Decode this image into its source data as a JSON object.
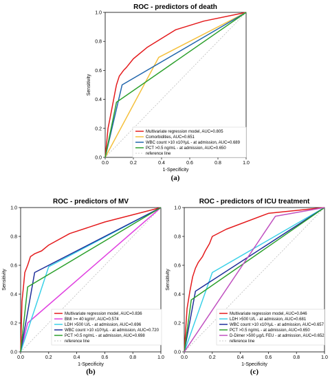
{
  "chart_data": [
    {
      "type": "line",
      "title": "ROC - predictors of death",
      "xlabel": "1-Specificity",
      "ylabel": "Sensitivity",
      "xlim": [
        0,
        1
      ],
      "ylim": [
        0,
        1
      ],
      "xticks": [
        "0.0",
        "0.2",
        "0.4",
        "0.6",
        "0.8",
        "1.0"
      ],
      "yticks": [
        "0.0",
        "0.2",
        "0.4",
        "0.6",
        "0.8",
        "1.0"
      ],
      "panel_label": "(a)",
      "legend_position": "bottom-right",
      "series": [
        {
          "name": "Multivariate regression model, AUC=0.805",
          "color": "#e41a1c",
          "x": [
            0,
            0.01,
            0.02,
            0.03,
            0.05,
            0.07,
            0.08,
            0.1,
            0.13,
            0.15,
            0.2,
            0.3,
            0.5,
            0.7,
            1.0
          ],
          "y": [
            0,
            0.1,
            0.2,
            0.25,
            0.35,
            0.45,
            0.5,
            0.56,
            0.6,
            0.62,
            0.68,
            0.76,
            0.88,
            0.94,
            1.0
          ]
        },
        {
          "name": "Comorbidities, AUC=0.651",
          "color": "#f5c03c",
          "x": [
            0,
            0.38,
            1.0
          ],
          "y": [
            0,
            0.69,
            1.0
          ]
        },
        {
          "name": "WBC count >10 x10³/μL - at admission, AUC=0.689",
          "color": "#2166ac",
          "x": [
            0,
            0.12,
            1.0
          ],
          "y": [
            0,
            0.5,
            1.0
          ]
        },
        {
          "name": "PCT >0.5 ng/mL - at admission, AUC=0.650",
          "color": "#2ca02c",
          "x": [
            0,
            0.08,
            1.0
          ],
          "y": [
            0,
            0.38,
            1.0
          ]
        },
        {
          "name": "reference line",
          "color": "#bbbbbb",
          "dashed": true,
          "x": [
            0,
            1
          ],
          "y": [
            0,
            1
          ]
        }
      ]
    },
    {
      "type": "line",
      "title": "ROC - predictors of MV",
      "xlabel": "1-Specificity",
      "ylabel": "Sensitivity",
      "xlim": [
        0,
        1
      ],
      "ylim": [
        0,
        1
      ],
      "xticks": [
        "0.0",
        "0.2",
        "0.4",
        "0.6",
        "0.8",
        "1.0"
      ],
      "yticks": [
        "0.0",
        "0.2",
        "0.4",
        "0.6",
        "0.8",
        "1.0"
      ],
      "panel_label": "(b)",
      "legend_position": "bottom-right",
      "series": [
        {
          "name": "Multivariate regression model, AUC=0.836",
          "color": "#e41a1c",
          "x": [
            0,
            0.01,
            0.02,
            0.03,
            0.05,
            0.07,
            0.1,
            0.15,
            0.2,
            0.35,
            0.6,
            1.0
          ],
          "y": [
            0,
            0.35,
            0.45,
            0.55,
            0.6,
            0.66,
            0.68,
            0.7,
            0.74,
            0.82,
            0.9,
            1.0
          ]
        },
        {
          "name": "BMI >= 40 kg/m², AUC=0.574",
          "color": "#e040e0",
          "x": [
            0,
            0.05,
            1.0
          ],
          "y": [
            0,
            0.2,
            1.0
          ]
        },
        {
          "name": "LDH >500 U/L - at admission, AUC=0.696",
          "color": "#3ad1e8",
          "x": [
            0,
            0.2,
            1.0
          ],
          "y": [
            0,
            0.59,
            1.0
          ]
        },
        {
          "name": "WBC count >10 x10³/μL - at admission, AUC=0.720",
          "color": "#1f2f9a",
          "x": [
            0,
            0.1,
            1.0
          ],
          "y": [
            0,
            0.55,
            1.0
          ]
        },
        {
          "name": "PCT >0.5 ng/mL - at admission, AUC=0.698",
          "color": "#2ca02c",
          "x": [
            0,
            0.05,
            1.0
          ],
          "y": [
            0,
            0.45,
            1.0
          ]
        },
        {
          "name": "reference line",
          "color": "#bbbbbb",
          "dashed": true,
          "x": [
            0,
            1
          ],
          "y": [
            0,
            1
          ]
        }
      ]
    },
    {
      "type": "line",
      "title": "ROC - predictors of ICU treatment",
      "xlabel": "1-Specificity",
      "ylabel": "Sensitivity",
      "xlim": [
        0,
        1
      ],
      "ylim": [
        0,
        1
      ],
      "xticks": [
        "0.0",
        "0.2",
        "0.4",
        "0.6",
        "0.8",
        "1.0"
      ],
      "yticks": [
        "0.0",
        "0.2",
        "0.4",
        "0.6",
        "0.8",
        "1.0"
      ],
      "panel_label": "(c)",
      "legend_position": "bottom-right",
      "series": [
        {
          "name": "Multivariate regression model, AUC=0.846",
          "color": "#e41a1c",
          "x": [
            0,
            0.01,
            0.02,
            0.04,
            0.06,
            0.08,
            0.1,
            0.13,
            0.15,
            0.18,
            0.2,
            0.3,
            0.6,
            1.0
          ],
          "y": [
            0,
            0.15,
            0.3,
            0.42,
            0.52,
            0.58,
            0.62,
            0.66,
            0.7,
            0.75,
            0.8,
            0.85,
            0.96,
            1.0
          ]
        },
        {
          "name": "LDH >500 U/L - at admission, AUC=0.681",
          "color": "#3ad1e8",
          "x": [
            0,
            0.2,
            1.0
          ],
          "y": [
            0,
            0.55,
            1.0
          ]
        },
        {
          "name": "WBC count >10 x10³/μL - at admission, AUC=0.657",
          "color": "#1f2f9a",
          "x": [
            0,
            0.08,
            1.0
          ],
          "y": [
            0,
            0.42,
            1.0
          ]
        },
        {
          "name": "PCT >0.5 ng/mL - at admission, AUC=0.650",
          "color": "#2ca02c",
          "x": [
            0,
            0.05,
            1.0
          ],
          "y": [
            0,
            0.36,
            1.0
          ]
        },
        {
          "name": "D-Dimer >500 μg/L FEU - at admission, AUC=0.652",
          "color": "#c050c0",
          "x": [
            0,
            0.65,
            1.0
          ],
          "y": [
            0,
            0.94,
            1.0
          ]
        },
        {
          "name": "reference line",
          "color": "#bbbbbb",
          "dashed": true,
          "x": [
            0,
            1
          ],
          "y": [
            0,
            1
          ]
        }
      ]
    }
  ]
}
